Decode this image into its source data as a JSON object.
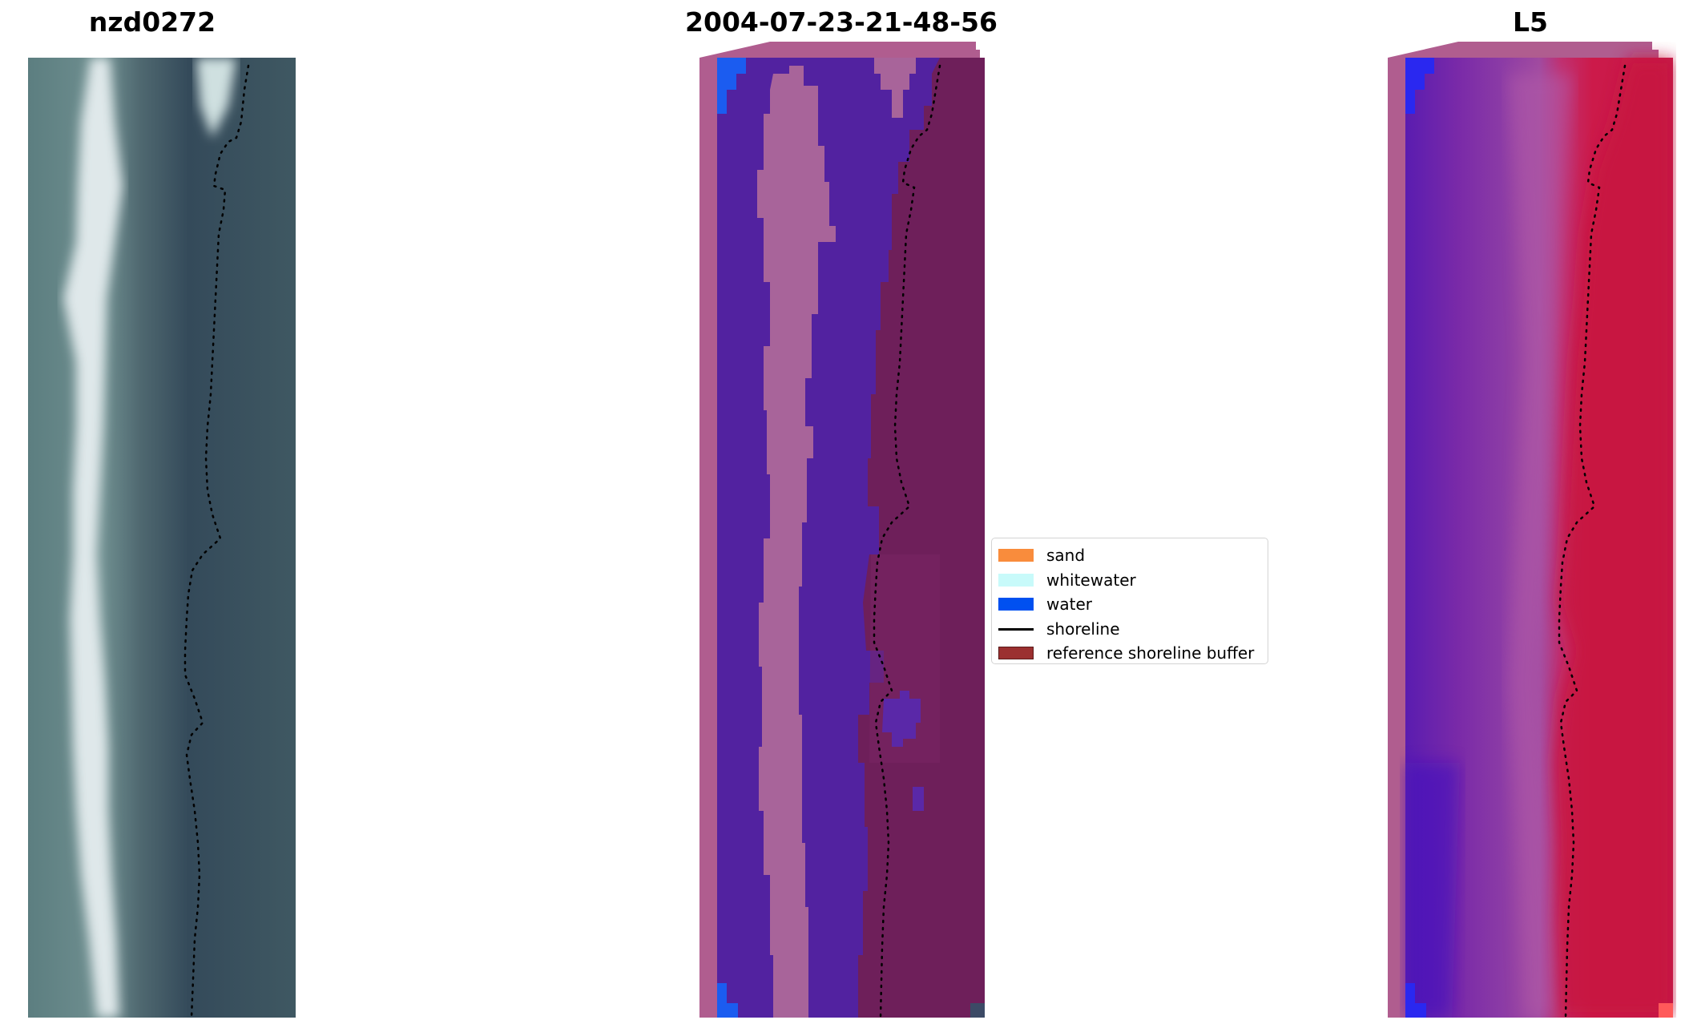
{
  "panels": [
    {
      "title": "nzd0272"
    },
    {
      "title": "2004-07-23-21-48-56"
    },
    {
      "title": "L5"
    }
  ],
  "legend": {
    "items": [
      {
        "label": "sand",
        "color": "#f98c3c",
        "type": "patch"
      },
      {
        "label": "whitewater",
        "color": "#c8fafa",
        "type": "patch"
      },
      {
        "label": "water",
        "color": "#0050f0",
        "type": "patch"
      },
      {
        "label": "shoreline",
        "color": "#000000",
        "type": "line"
      },
      {
        "label": "reference shoreline buffer",
        "color": "#9b3030",
        "type": "patch",
        "edge": "#5a1a1a"
      }
    ]
  }
}
